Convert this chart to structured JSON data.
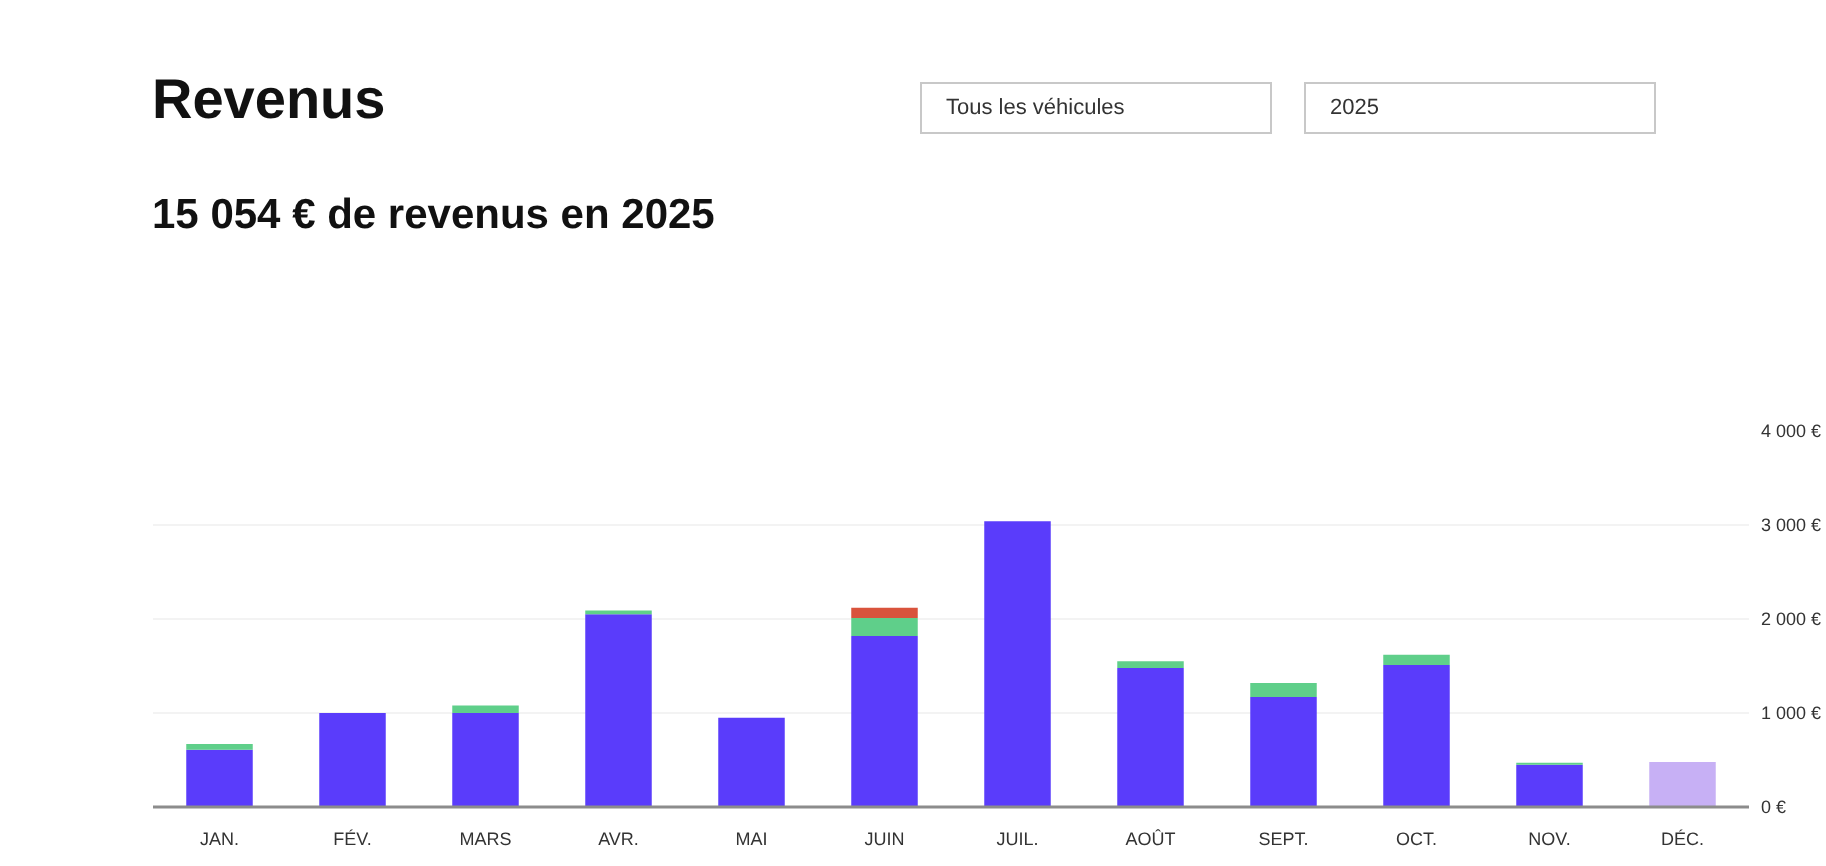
{
  "chart_data": {
    "type": "bar",
    "title": "Revenus",
    "subtitle": "15 054 € de revenus en 2025",
    "annotations": [
      "Tous les véhicules",
      "2025"
    ],
    "categories": [
      "JAN.",
      "FÉV.",
      "MARS",
      "AVR.",
      "MAI",
      "JUIN",
      "JUIL.",
      "AOÛT",
      "SEPT.",
      "OCT.",
      "NOV.",
      "DÉC."
    ],
    "series": [
      {
        "color": "#5a3cfb",
        "values": [
          610,
          1000,
          1000,
          2050,
          950,
          1820,
          3040,
          1480,
          1170,
          1510,
          450,
          null
        ]
      },
      {
        "color": "#5fcf8a",
        "values": [
          60,
          null,
          80,
          40,
          null,
          190,
          null,
          70,
          150,
          110,
          20,
          null
        ]
      },
      {
        "color": "#d9533c",
        "values": [
          null,
          null,
          null,
          null,
          null,
          110,
          null,
          null,
          null,
          null,
          null,
          null
        ]
      },
      {
        "color": "#c7b0f5",
        "values": [
          null,
          null,
          null,
          null,
          null,
          null,
          null,
          null,
          null,
          null,
          null,
          480
        ]
      }
    ],
    "stacked": true,
    "ylim": [
      0,
      4000
    ],
    "yticks": [
      {
        "value": 0,
        "label": "0 €"
      },
      {
        "value": 1000,
        "label": "1 000 €"
      },
      {
        "value": 2000,
        "label": "2 000 €"
      },
      {
        "value": 3000,
        "label": "3 000 €"
      },
      {
        "value": 4000,
        "label": "4 000 €"
      }
    ],
    "grid": "y"
  }
}
